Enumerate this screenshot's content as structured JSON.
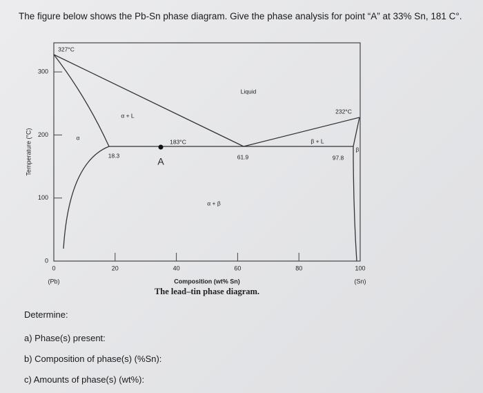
{
  "question": "The figure below shows the Pb-Sn phase diagram. Give the phase analysis for point “A” at 33% Sn, 181 C°.",
  "figure": {
    "y_axis_label": "Temperature (°C)",
    "x_axis_label": "Composition (wt% Sn)",
    "caption": "The lead–tin phase diagram.",
    "xticks": [
      0,
      20,
      40,
      60,
      80,
      100
    ],
    "yticks": [
      0,
      100,
      200,
      300
    ],
    "x_end_labels": [
      "(Pb)",
      "(Sn)"
    ],
    "annotations": [
      "327°C",
      "Liquid",
      "232°C",
      "α + L",
      "α",
      "183°C",
      "β + L",
      "β",
      "18.3",
      "A",
      "61.9",
      "97.8",
      "α + β"
    ]
  },
  "determine": {
    "heading": "Determine:",
    "items": [
      "a) Phase(s) present:",
      "b) Composition of phase(s) (%Sn):",
      "c) Amounts of phase(s) (wt%):"
    ]
  }
}
